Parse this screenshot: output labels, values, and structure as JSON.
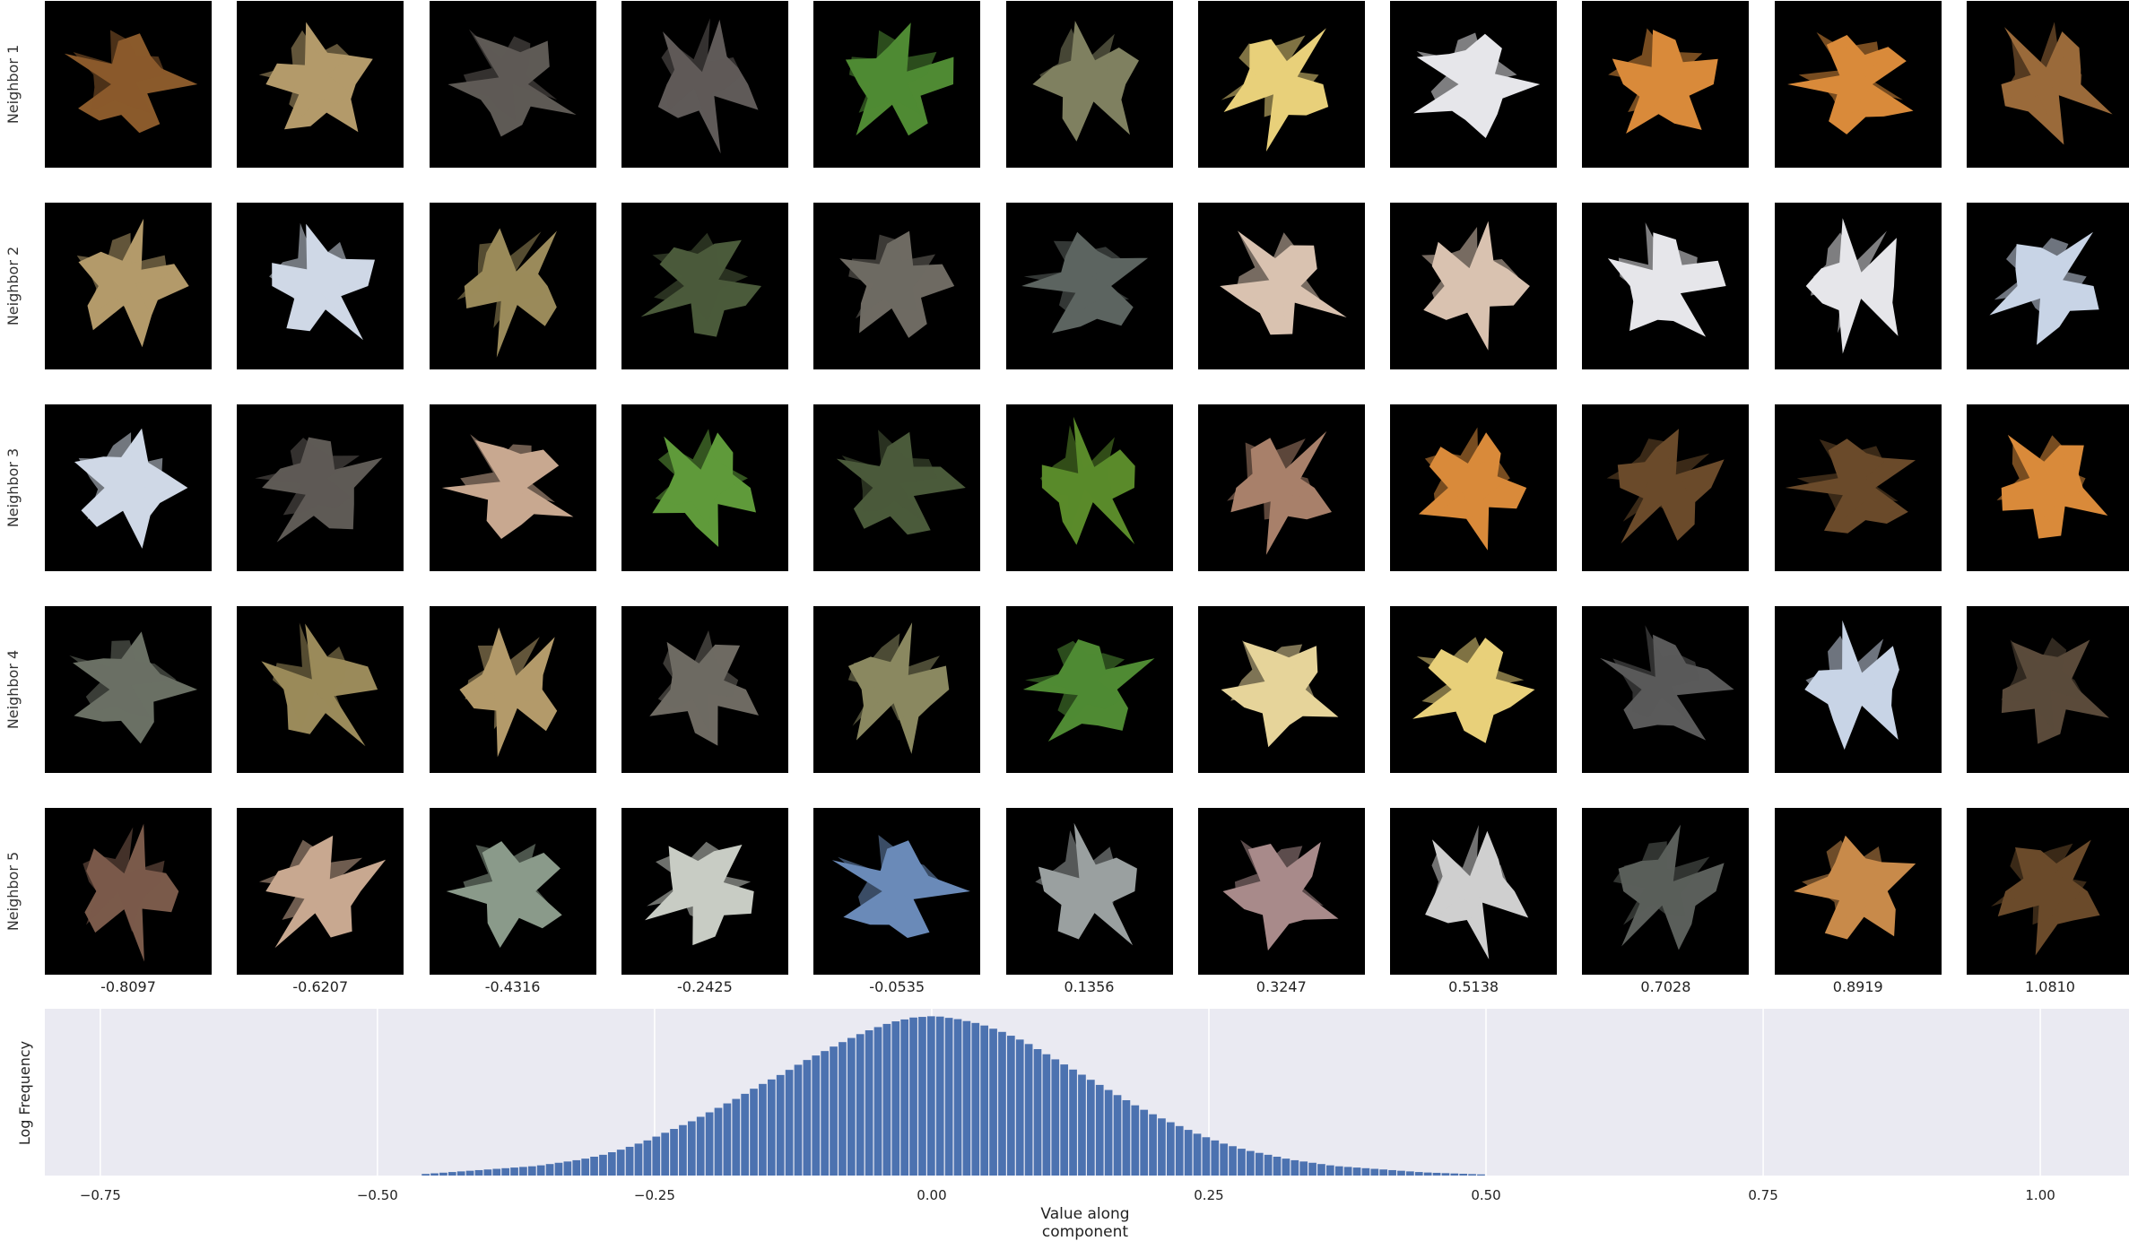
{
  "row_labels": [
    "Neighbor 1",
    "Neighbor 2",
    "Neighbor 3",
    "Neighbor 4",
    "Neighbor 5"
  ],
  "column_values": [
    "-0.8097",
    "-0.6207",
    "-0.4316",
    "-0.2425",
    "-0.0535",
    "0.1356",
    "0.3247",
    "0.5138",
    "0.7028",
    "0.8919",
    "1.0810"
  ],
  "tiles": [
    [
      "#8a5a2b",
      "#b39a6a",
      "#5e5a55",
      "#5f5a58",
      "#4f8a33",
      "#7f8060",
      "#e8d07a",
      "#e6e6ea",
      "#d98a3a",
      "#d98a3a",
      "#9a6a3a"
    ],
    [
      "#b39a6a",
      "#cfd8e6",
      "#9a8a5a",
      "#4a5a3a",
      "#6e6a62",
      "#5c6460",
      "#d9c2b0",
      "#d9c2b0",
      "#e6e6ea",
      "#e6e6ea",
      "#c8d4e6"
    ],
    [
      "#cfd8e6",
      "#5e5a55",
      "#c8a890",
      "#5f9a3a",
      "#4a5a3a",
      "#5a8a2a",
      "#a8806a",
      "#d98a3a",
      "#6a4a2a",
      "#6a4a2a",
      "#d98a3a"
    ],
    [
      "#6a7064",
      "#9a8a5a",
      "#b39a6a",
      "#6e6a62",
      "#8a8860",
      "#4f8a33",
      "#e6d49a",
      "#e8d07a",
      "#5a5a5a",
      "#c8d4e6",
      "#5a4a3a"
    ],
    [
      "#7a5a4a",
      "#c8a890",
      "#8a9a8a",
      "#c8ccc4",
      "#6a8ab8",
      "#9aa0a0",
      "#a88a8a",
      "#cfcfcf",
      "#5a5e5a",
      "#c88a4a",
      "#6a4a2a"
    ]
  ],
  "chart_data": {
    "type": "bar",
    "title": "",
    "xlabel": "Value along component",
    "ylabel": "Log Frequency",
    "xlim": [
      -0.8,
      1.08
    ],
    "ylim": [
      0,
      1.0
    ],
    "grid": true,
    "xticks": [
      "−0.75",
      "−0.50",
      "−0.25",
      "0.00",
      "0.25",
      "0.50",
      "0.75",
      "1.00"
    ],
    "xtick_values": [
      -0.75,
      -0.5,
      -0.25,
      0.0,
      0.25,
      0.5,
      0.75,
      1.0
    ],
    "bar_color": "#4c72b0",
    "background": "#eaeaf2",
    "bin_width": 0.008,
    "bins": [
      {
        "x": -0.46,
        "y": 0.01
      },
      {
        "x": -0.44,
        "y": 0.02
      },
      {
        "x": -0.42,
        "y": 0.03
      },
      {
        "x": -0.4,
        "y": 0.04
      },
      {
        "x": -0.38,
        "y": 0.05
      },
      {
        "x": -0.36,
        "y": 0.06
      },
      {
        "x": -0.34,
        "y": 0.08
      },
      {
        "x": -0.32,
        "y": 0.1
      },
      {
        "x": -0.3,
        "y": 0.13
      },
      {
        "x": -0.28,
        "y": 0.17
      },
      {
        "x": -0.26,
        "y": 0.22
      },
      {
        "x": -0.24,
        "y": 0.28
      },
      {
        "x": -0.22,
        "y": 0.34
      },
      {
        "x": -0.2,
        "y": 0.41
      },
      {
        "x": -0.18,
        "y": 0.48
      },
      {
        "x": -0.16,
        "y": 0.56
      },
      {
        "x": -0.14,
        "y": 0.63
      },
      {
        "x": -0.12,
        "y": 0.71
      },
      {
        "x": -0.1,
        "y": 0.78
      },
      {
        "x": -0.08,
        "y": 0.85
      },
      {
        "x": -0.06,
        "y": 0.91
      },
      {
        "x": -0.04,
        "y": 0.96
      },
      {
        "x": -0.02,
        "y": 0.99
      },
      {
        "x": 0.0,
        "y": 1.0
      },
      {
        "x": 0.02,
        "y": 0.98
      },
      {
        "x": 0.04,
        "y": 0.95
      },
      {
        "x": 0.06,
        "y": 0.9
      },
      {
        "x": 0.08,
        "y": 0.84
      },
      {
        "x": 0.1,
        "y": 0.76
      },
      {
        "x": 0.12,
        "y": 0.68
      },
      {
        "x": 0.14,
        "y": 0.6
      },
      {
        "x": 0.16,
        "y": 0.52
      },
      {
        "x": 0.18,
        "y": 0.44
      },
      {
        "x": 0.2,
        "y": 0.37
      },
      {
        "x": 0.22,
        "y": 0.31
      },
      {
        "x": 0.24,
        "y": 0.25
      },
      {
        "x": 0.26,
        "y": 0.2
      },
      {
        "x": 0.28,
        "y": 0.16
      },
      {
        "x": 0.3,
        "y": 0.13
      },
      {
        "x": 0.32,
        "y": 0.1
      },
      {
        "x": 0.34,
        "y": 0.08
      },
      {
        "x": 0.36,
        "y": 0.06
      },
      {
        "x": 0.38,
        "y": 0.05
      },
      {
        "x": 0.4,
        "y": 0.04
      },
      {
        "x": 0.42,
        "y": 0.03
      },
      {
        "x": 0.44,
        "y": 0.02
      },
      {
        "x": 0.46,
        "y": 0.015
      },
      {
        "x": 0.48,
        "y": 0.01
      },
      {
        "x": 0.5,
        "y": 0.005
      }
    ]
  }
}
